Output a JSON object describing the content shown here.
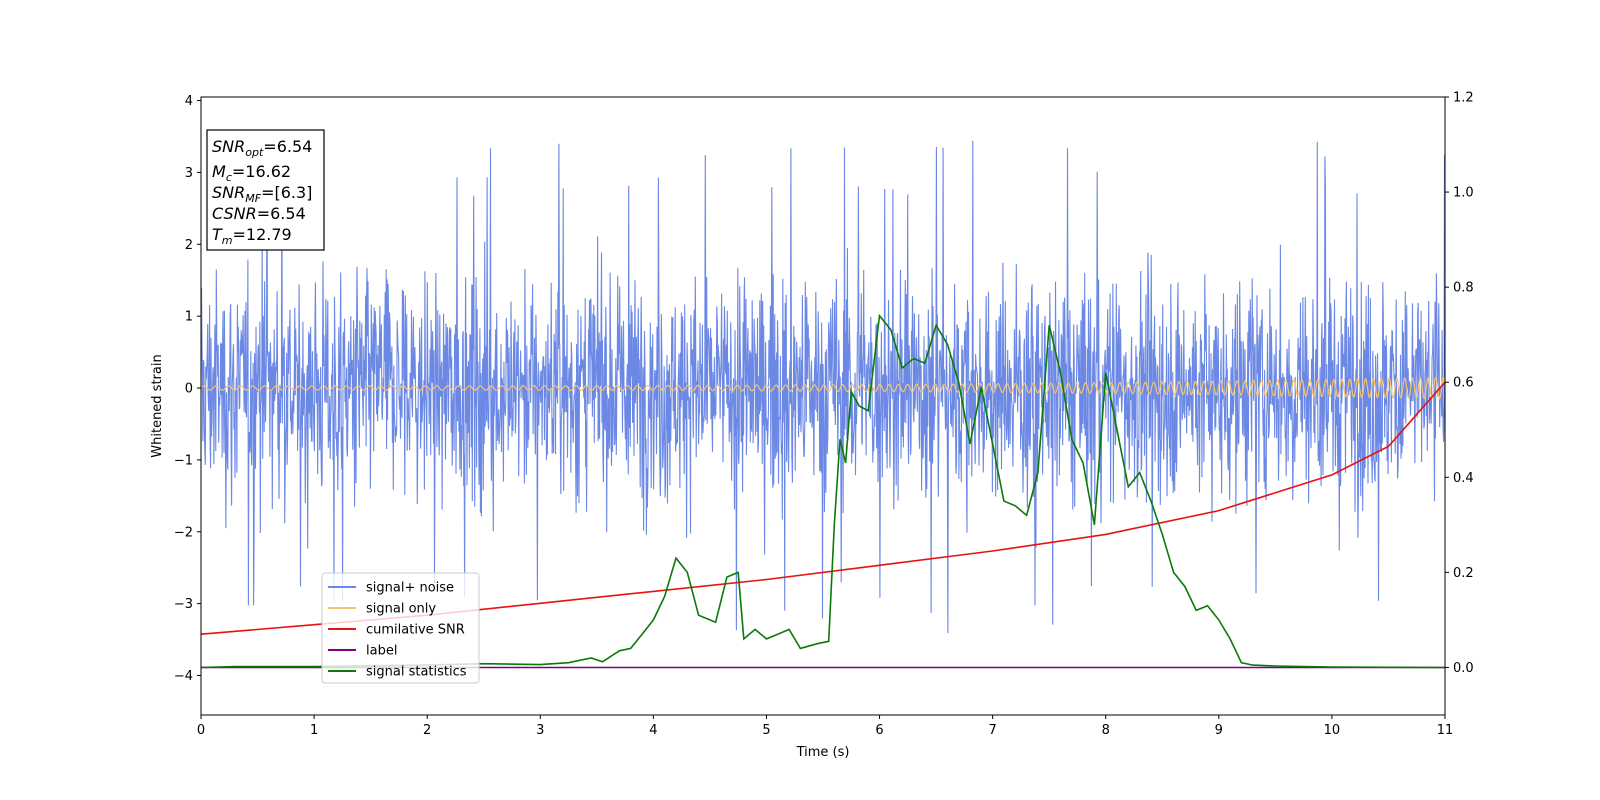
{
  "chart_data": {
    "type": "line",
    "title": "",
    "xlabel": "Time (s)",
    "ylabel": "Whitened strain",
    "xlim": [
      0,
      11
    ],
    "ylim": [
      -4.55,
      4.05
    ],
    "y2lim": [
      -0.1,
      1.2
    ],
    "x_ticks": [
      "0",
      "1",
      "2",
      "3",
      "4",
      "5",
      "6",
      "7",
      "8",
      "9",
      "10",
      "11"
    ],
    "y_ticks": [
      "4",
      "3",
      "2",
      "1",
      "0",
      "−1",
      "−2",
      "−3",
      "−4"
    ],
    "y2_ticks": [
      "1.2",
      "1.0",
      "0.8",
      "0.6",
      "0.4",
      "0.2",
      "0.0"
    ],
    "grid": false,
    "legend_position": "lower-left",
    "annotation": [
      {
        "base": "SNR",
        "sub": "opt",
        "rest": "=6.54"
      },
      {
        "base": "M",
        "sub": "c",
        "rest": "=16.62"
      },
      {
        "base": "SNR",
        "sub": "MF",
        "rest": "=[6.3]"
      },
      {
        "base": "CSNR",
        "sub": "",
        "rest": "=6.54"
      },
      {
        "base": "T",
        "sub": "m",
        "rest": "=12.79"
      }
    ],
    "series": [
      {
        "name": "signal+ noise",
        "color": "#6b88e5",
        "axis": "left",
        "description_values": "noise envelope approx -2.6..2.8 with spikes to 3.5 and -4.15"
      },
      {
        "name": "signal only",
        "color": "#f5c46e",
        "axis": "left",
        "amplitude_start": 0.03,
        "amplitude_end": 0.15
      },
      {
        "name": "cumilative SNR",
        "color": "#e8110f",
        "axis": "right",
        "x": [
          0,
          1,
          2,
          3,
          4,
          5,
          6,
          7,
          8,
          9,
          10,
          10.5,
          11
        ],
        "values": [
          0.07,
          0.09,
          0.11,
          0.135,
          0.16,
          0.185,
          0.215,
          0.245,
          0.28,
          0.33,
          0.405,
          0.465,
          0.6
        ]
      },
      {
        "name": "label",
        "color": "#800080",
        "axis": "right",
        "x": [
          0,
          11
        ],
        "values": [
          0.0,
          0.0
        ]
      },
      {
        "name": "signal statistics",
        "color": "#0a7a0a",
        "axis": "right",
        "x": [
          0,
          0.3,
          1,
          2,
          2.5,
          3,
          3.25,
          3.45,
          3.55,
          3.7,
          3.8,
          3.9,
          4.0,
          4.1,
          4.2,
          4.3,
          4.4,
          4.5,
          4.55,
          4.65,
          4.75,
          4.8,
          4.9,
          5.0,
          5.1,
          5.2,
          5.3,
          5.45,
          5.55,
          5.6,
          5.65,
          5.7,
          5.75,
          5.82,
          5.9,
          6.0,
          6.1,
          6.2,
          6.3,
          6.4,
          6.5,
          6.6,
          6.7,
          6.8,
          6.9,
          7.0,
          7.1,
          7.2,
          7.3,
          7.4,
          7.5,
          7.6,
          7.7,
          7.8,
          7.9,
          8.0,
          8.1,
          8.2,
          8.3,
          8.4,
          8.5,
          8.6,
          8.7,
          8.8,
          8.9,
          9.0,
          9.1,
          9.2,
          9.3,
          9.5,
          10,
          11
        ],
        "values": [
          0.0,
          0.002,
          0.002,
          0.005,
          0.008,
          0.006,
          0.01,
          0.02,
          0.012,
          0.035,
          0.04,
          0.07,
          0.1,
          0.15,
          0.23,
          0.2,
          0.11,
          0.1,
          0.095,
          0.19,
          0.2,
          0.06,
          0.08,
          0.06,
          0.07,
          0.08,
          0.04,
          0.05,
          0.055,
          0.3,
          0.48,
          0.43,
          0.58,
          0.55,
          0.54,
          0.74,
          0.71,
          0.63,
          0.65,
          0.64,
          0.72,
          0.68,
          0.6,
          0.47,
          0.59,
          0.47,
          0.35,
          0.34,
          0.32,
          0.41,
          0.72,
          0.62,
          0.48,
          0.43,
          0.3,
          0.62,
          0.5,
          0.38,
          0.41,
          0.35,
          0.28,
          0.2,
          0.17,
          0.12,
          0.13,
          0.1,
          0.06,
          0.01,
          0.005,
          0.003,
          0.001,
          0.0
        ]
      }
    ]
  }
}
